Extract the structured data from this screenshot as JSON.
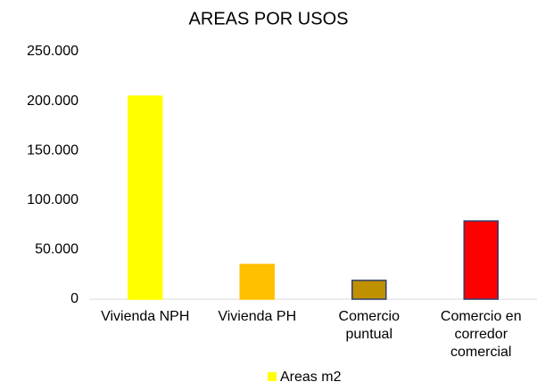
{
  "chart_data": {
    "type": "bar",
    "title": "AREAS POR USOS",
    "categories": [
      "Vivienda NPH",
      "Vivienda PH",
      "Comercio puntual",
      "Comercio en corredor comercial"
    ],
    "series": [
      {
        "name": "Areas m2",
        "color": "#ffff00",
        "colors": [
          "#ffff00",
          "#ffc000",
          "#bf9000",
          "#ff0000"
        ],
        "edgecolors": [
          "#ffff00",
          "#ffc000",
          "#2f3f6f",
          "#2f3f6f"
        ],
        "values": [
          205000,
          35000,
          19000,
          79000
        ]
      }
    ],
    "ylim": [
      0,
      250000
    ],
    "yticks": [
      0,
      {
        "value": 50000,
        "label": "50.000"
      },
      {
        "value": 100000,
        "label": "100.000"
      },
      {
        "value": 150000,
        "label": "150.000"
      },
      {
        "value": 200000,
        "label": "200.000"
      },
      {
        "value": 250000,
        "label": "250.000"
      }
    ],
    "grid": false,
    "legend": "bottom"
  }
}
